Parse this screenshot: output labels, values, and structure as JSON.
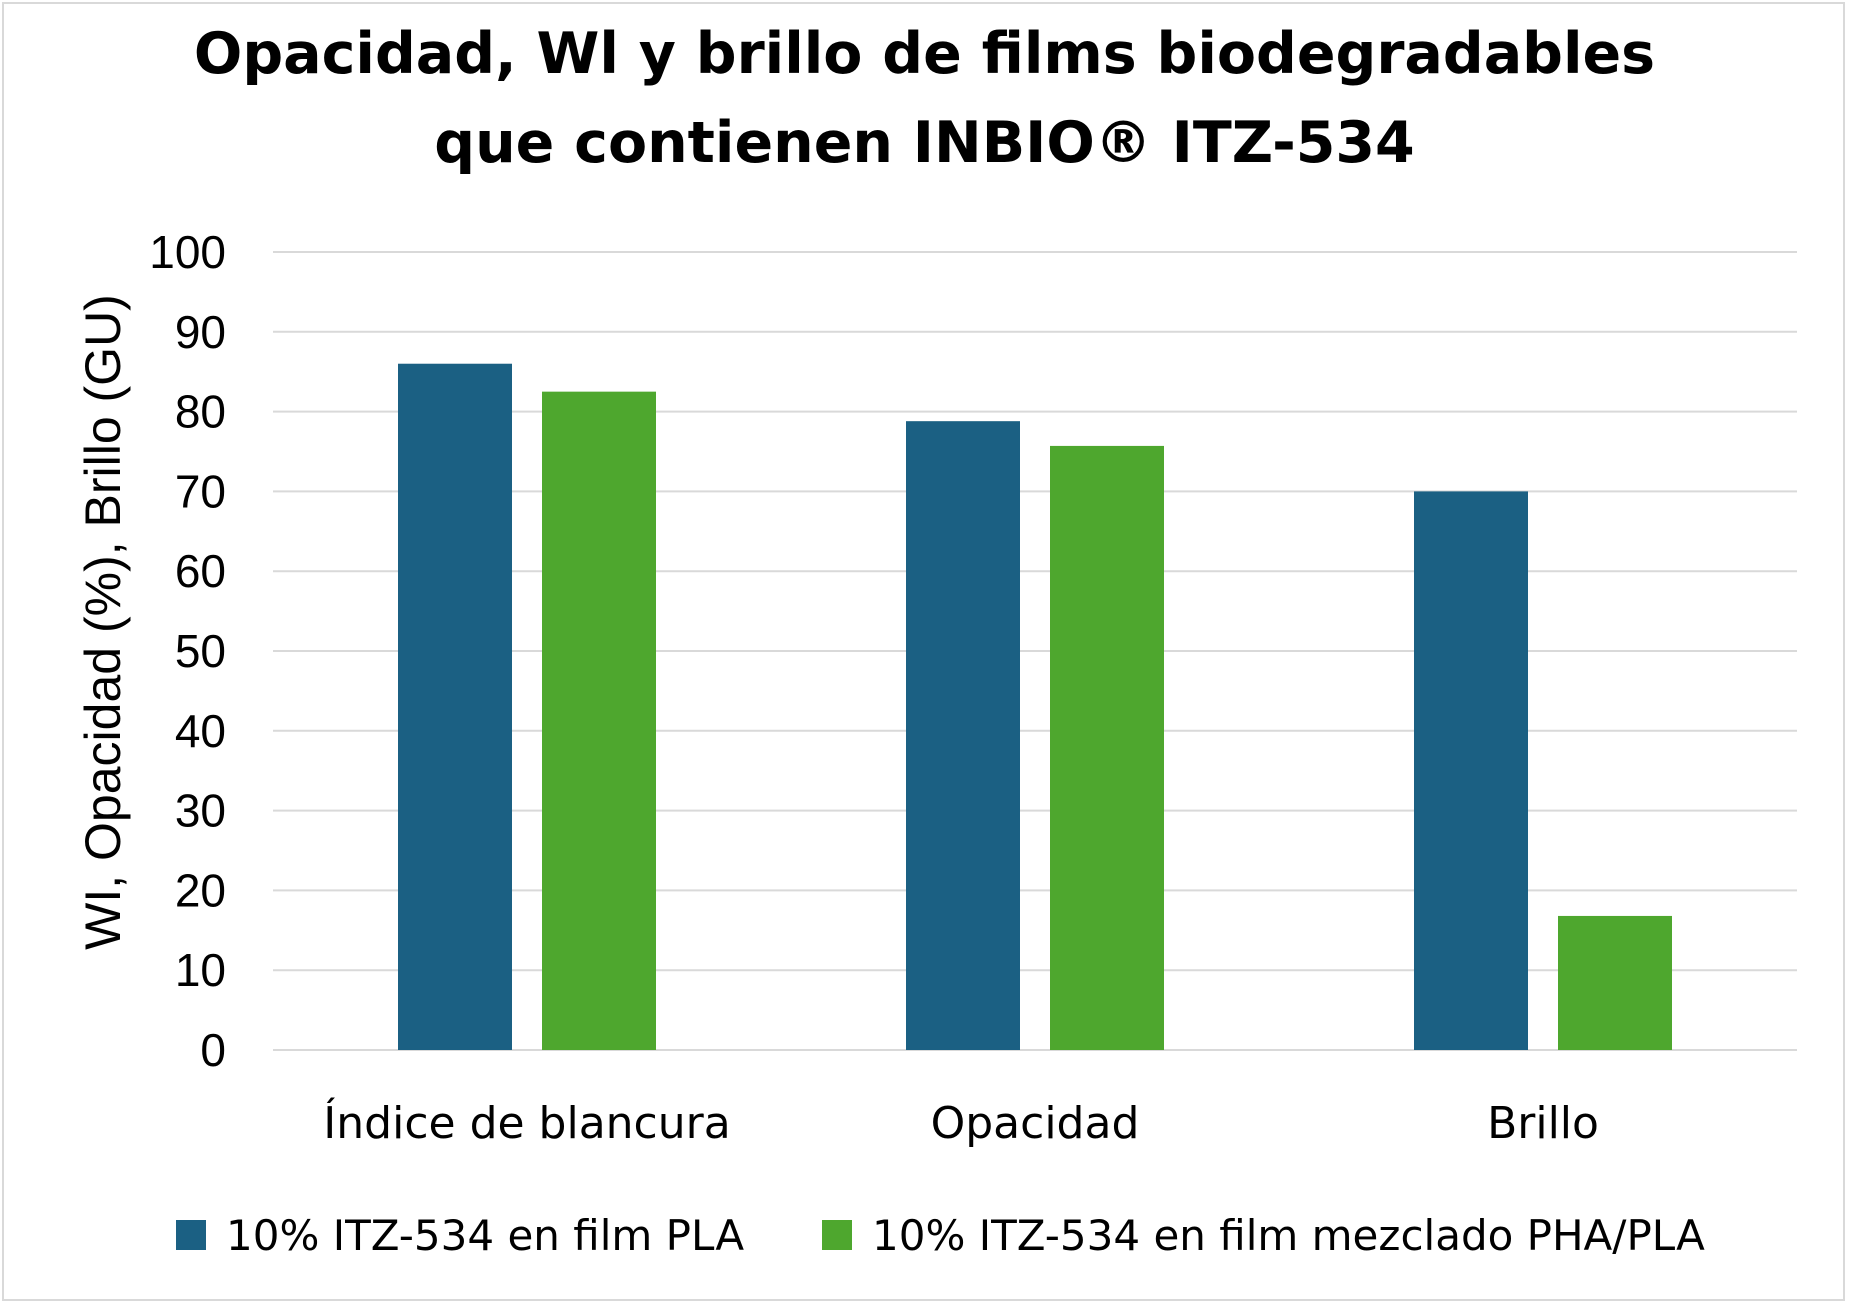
{
  "chart_data": {
    "type": "bar",
    "title": "Opacidad, Wl y brillo de films biodegradables",
    "subtitle": "que contienen INBIO® ITZ-534",
    "ylabel": "WI, Opacidad (%), Brillo (GU)",
    "xlabel": "",
    "ylim": [
      0,
      100
    ],
    "yticks": [
      0,
      10,
      20,
      30,
      40,
      50,
      60,
      70,
      80,
      90,
      100
    ],
    "grid": true,
    "legend_position": "bottom",
    "categories": [
      "Índice de blancura",
      "Opacidad",
      "Brillo"
    ],
    "series": [
      {
        "name": "10% ITZ-534 en film PLA",
        "color": "#1b6083",
        "values": [
          86,
          78.8,
          70
        ]
      },
      {
        "name": "10% ITZ-534 en film mezclado PHA/PLA",
        "color": "#4ea72e",
        "values": [
          82.5,
          75.7,
          16.8
        ]
      }
    ]
  }
}
